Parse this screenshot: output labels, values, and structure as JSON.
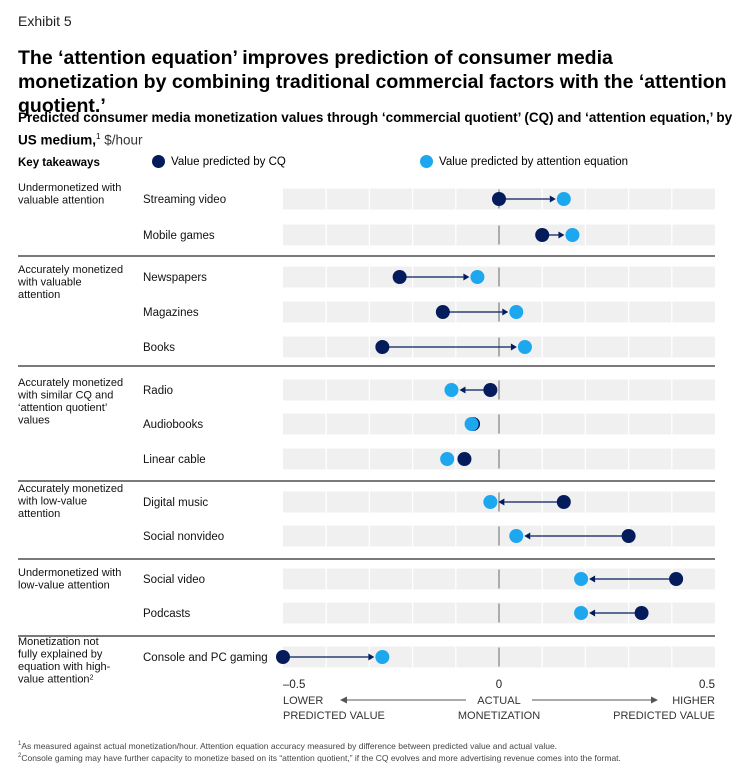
{
  "exhibit_label": "Exhibit 5",
  "title": "The ‘attention equation’ improves prediction of consumer media monetization by combining traditional commercial factors with the ‘attention quotient.’",
  "subtitle": {
    "text": "Predicted consumer media monetization values through ‘commercial quotient’ (CQ) and ‘attention equation,’ by US medium,",
    "footnote_ref": "1",
    "unit": "$/hour"
  },
  "key_takeaways_header": "Key takeaways",
  "footnotes": [
    {
      "ref": "1",
      "text": "As measured against actual monetization/hour. Attention equation accuracy measured by difference between predicted value and actual value."
    },
    {
      "ref": "2",
      "text": "Console gaming may have further capacity to monetize based on its “attention quotient,” if the CQ evolves and more advertising revenue comes into the format."
    }
  ],
  "colors": {
    "cq": "#051c5c",
    "attention": "#1da7ef",
    "row_band": "#f0f0f0",
    "group_rule": "#2a2a2a",
    "zero_line": "#9a9a9a"
  },
  "chart_data": {
    "type": "dumbbell",
    "xlim": [
      -0.5,
      0.5
    ],
    "x_ticks": [
      -0.5,
      0,
      0.5
    ],
    "x_tick_labels": [
      "–0.5",
      "0",
      "0.5"
    ],
    "x_axis_labels": {
      "left": [
        "LOWER",
        "PREDICTED VALUE"
      ],
      "center": [
        "ACTUAL",
        "MONETIZATION"
      ],
      "right": [
        "HIGHER",
        "PREDICTED VALUE"
      ]
    },
    "legend": [
      {
        "series": "cq",
        "label": "Value predicted by CQ"
      },
      {
        "series": "attention",
        "label": "Value predicted by attention equation"
      }
    ],
    "groups": [
      {
        "takeaway": [
          "Undermonetized with",
          "valuable attention"
        ],
        "rows": [
          {
            "medium": "Streaming video",
            "cq": 0.0,
            "attention": 0.15
          },
          {
            "medium": "Mobile games",
            "cq": 0.1,
            "attention": 0.17
          }
        ]
      },
      {
        "takeaway": [
          "Accurately monetized",
          "with valuable",
          "attention"
        ],
        "rows": [
          {
            "medium": "Newspapers",
            "cq": -0.23,
            "attention": -0.05
          },
          {
            "medium": "Magazines",
            "cq": -0.13,
            "attention": 0.04
          },
          {
            "medium": "Books",
            "cq": -0.27,
            "attention": 0.06
          }
        ]
      },
      {
        "takeaway": [
          "Accurately monetized",
          "with similar CQ and",
          "‘attention quotient’",
          "values"
        ],
        "rows": [
          {
            "medium": "Radio",
            "cq": -0.02,
            "attention": -0.11
          },
          {
            "medium": "Audiobooks",
            "cq": -0.06,
            "attention": -0.06
          },
          {
            "medium": "Linear cable",
            "cq": -0.08,
            "attention": -0.12
          }
        ]
      },
      {
        "takeaway": [
          "Accurately monetized",
          "with low-value",
          "attention"
        ],
        "rows": [
          {
            "medium": "Digital music",
            "cq": 0.15,
            "attention": -0.02
          },
          {
            "medium": "Social nonvideo",
            "cq": 0.3,
            "attention": 0.04
          }
        ]
      },
      {
        "takeaway": [
          "Undermonetized with",
          "low-value attention"
        ],
        "rows": [
          {
            "medium": "Social video",
            "cq": 0.41,
            "attention": 0.19
          },
          {
            "medium": "Podcasts",
            "cq": 0.33,
            "attention": 0.19
          }
        ]
      },
      {
        "takeaway": [
          "Monetization not",
          "fully explained by",
          "equation with high-",
          "value attention"
        ],
        "takeaway_footnote": "2",
        "rows": [
          {
            "medium": "Console and PC gaming",
            "cq": -0.5,
            "attention": -0.27
          }
        ]
      }
    ]
  }
}
